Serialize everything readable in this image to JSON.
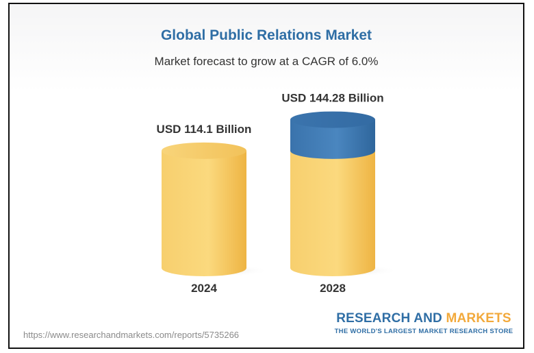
{
  "colors": {
    "title": "#2f6ea5",
    "base_fill": "#f5c45a",
    "growth_fill": "#3f7ab3",
    "brand_blue": "#2f6ea5",
    "brand_orange": "#f2a93b"
  },
  "chart_data": {
    "type": "bar",
    "title": "Global Public Relations Market",
    "subtitle": "Market forecast to grow at a CAGR of 6.0%",
    "categories": [
      "2024",
      "2028"
    ],
    "values": [
      114.1,
      144.28
    ],
    "unit": "USD Billion",
    "data_labels": [
      "USD 114.1 Billion",
      "USD 144.28 Billion"
    ],
    "style": "3d-cylinder",
    "growth_segment": {
      "from": 114.1,
      "to": 144.28,
      "color": "#3f7ab3"
    },
    "ylim": [
      0,
      144.28
    ],
    "grid": false,
    "legend": "none"
  },
  "footer": {
    "url": "https://www.researchandmarkets.com/reports/5735266",
    "brand_word1": "RESEARCH AND",
    "brand_word2": "MARKETS",
    "brand_tagline": "THE WORLD'S LARGEST MARKET RESEARCH STORE"
  }
}
